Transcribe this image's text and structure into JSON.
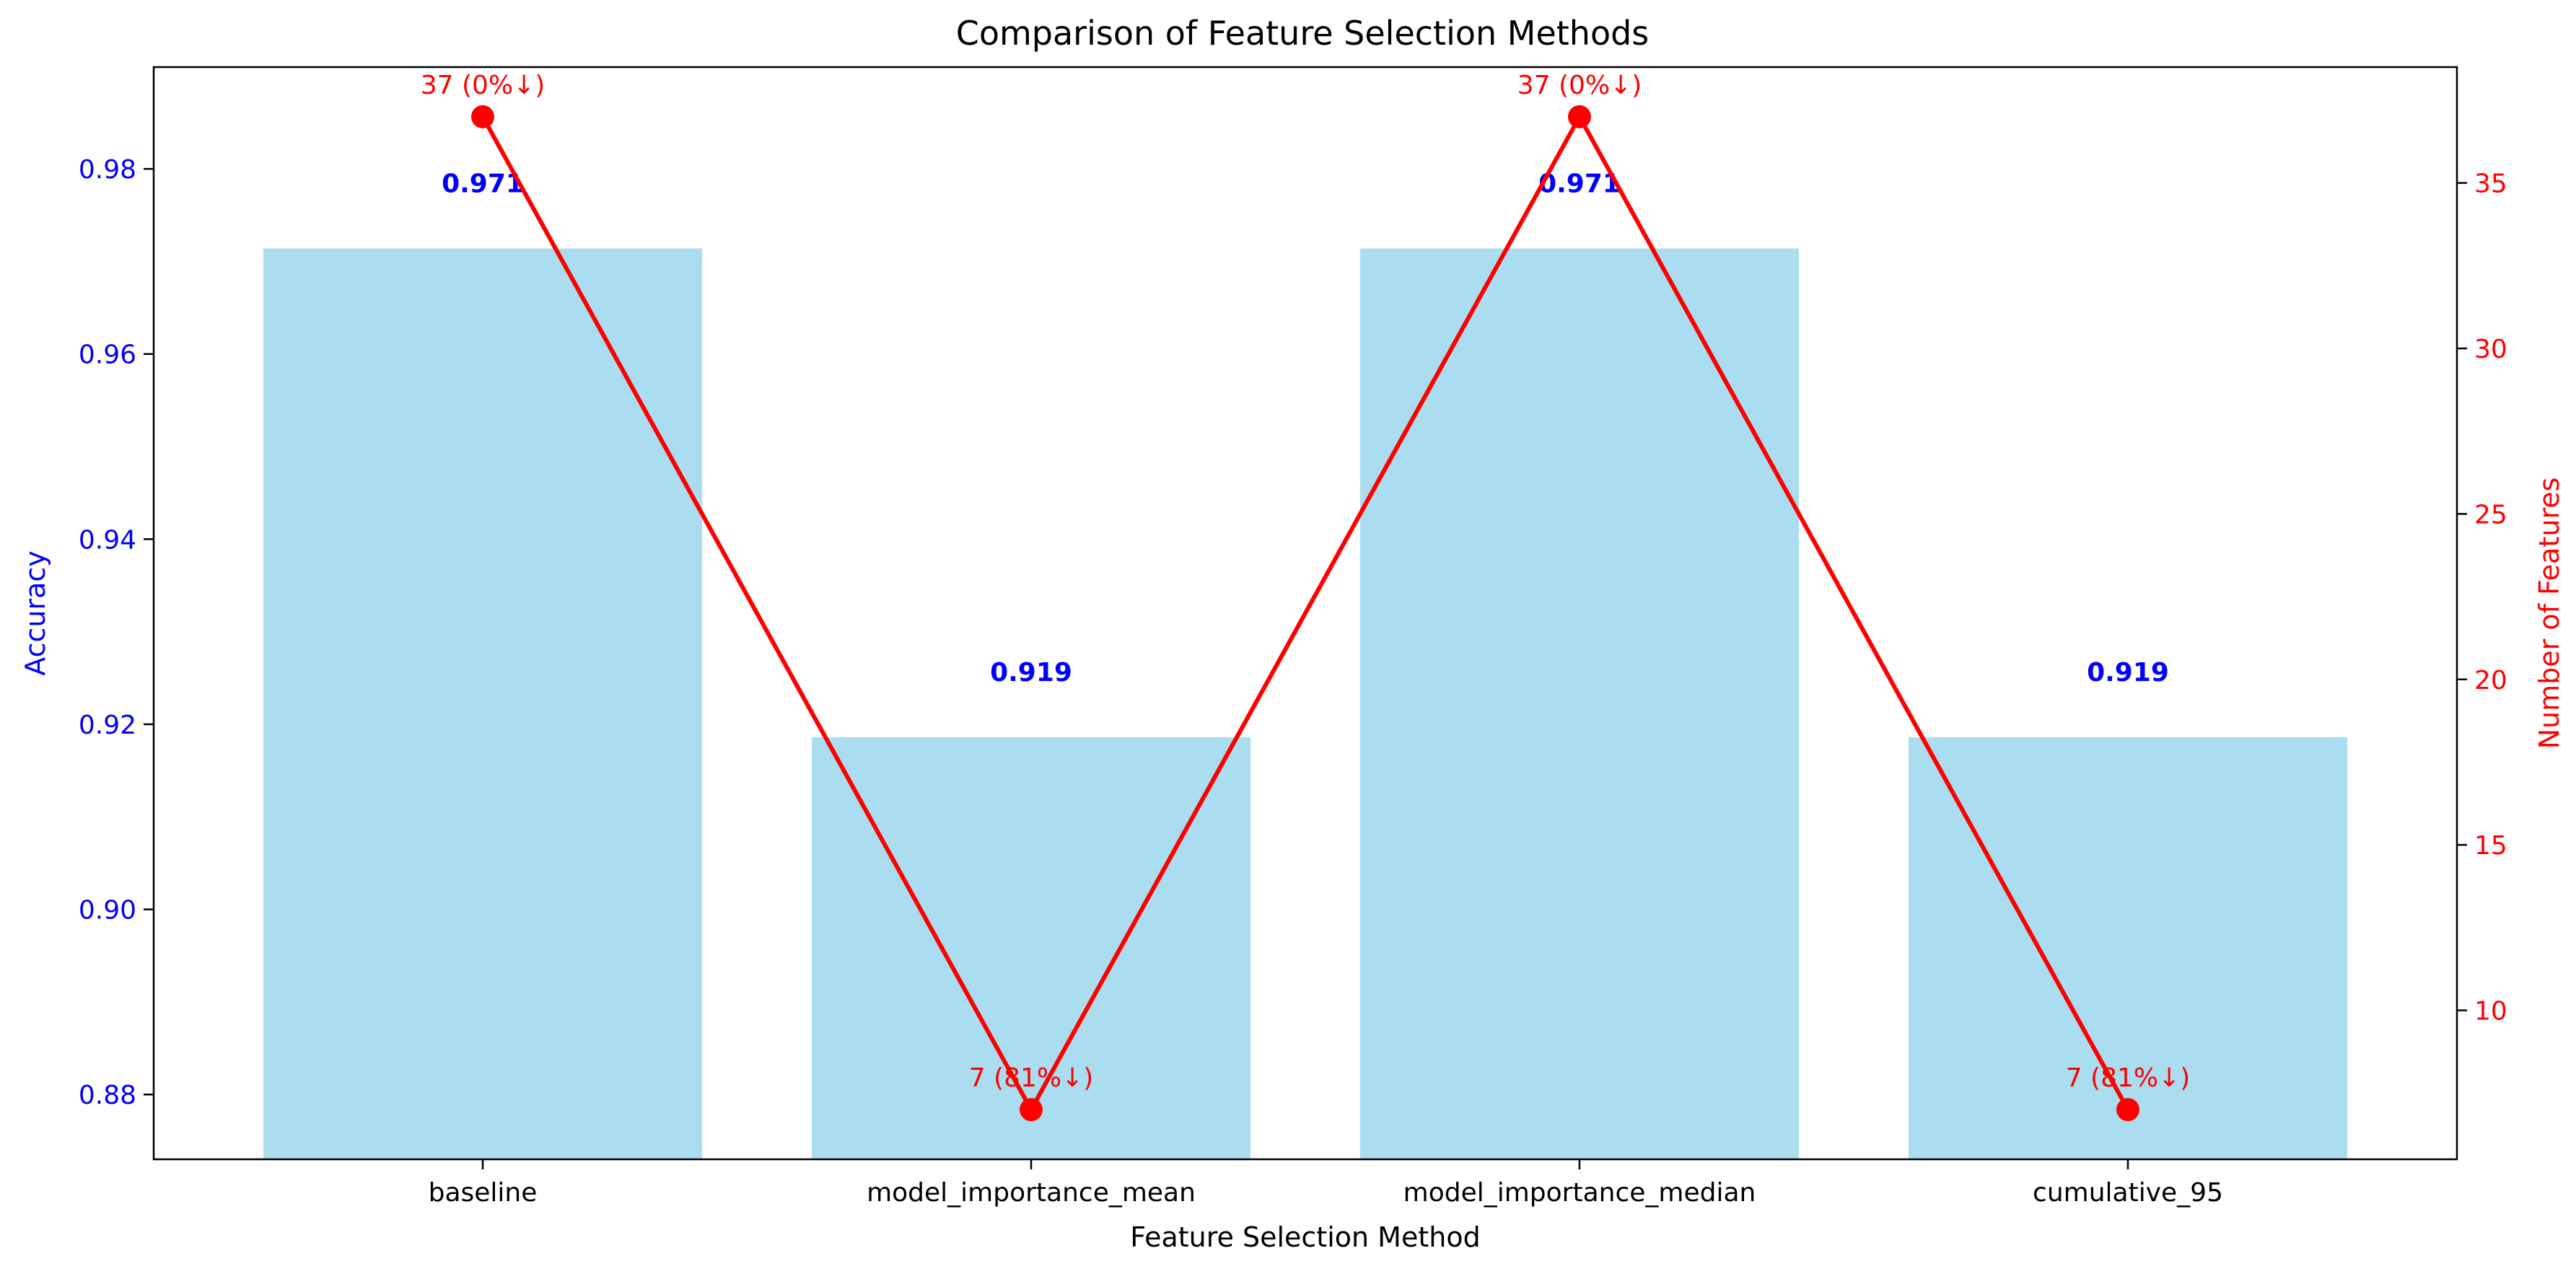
{
  "chart_data": {
    "type": "bar",
    "title": "Comparison of Feature Selection Methods",
    "xlabel": "Feature Selection Method",
    "ylabel": "Accuracy",
    "y2label": "Number of Features",
    "categories": [
      "baseline",
      "model_importance_mean",
      "model_importance_median",
      "cumulative_95"
    ],
    "ylim": [
      0.873,
      0.991
    ],
    "y2lim": [
      5.5,
      38.5
    ],
    "yticks": [
      "0.88",
      "0.90",
      "0.92",
      "0.94",
      "0.96",
      "0.98"
    ],
    "y2ticks": [
      "10",
      "15",
      "20",
      "25",
      "30",
      "35"
    ],
    "series": [
      {
        "type": "bar",
        "axis": "left",
        "values": [
          0.9714,
          0.9186,
          0.9714,
          0.9186
        ],
        "labels": [
          "0.971",
          "0.919",
          "0.971",
          "0.919"
        ],
        "color": "#87CEEB"
      },
      {
        "type": "line",
        "axis": "right",
        "values": [
          37,
          7,
          37,
          7
        ],
        "labels": [
          "37 (0%↓)",
          "7 (81%↓)",
          "37 (0%↓)",
          "7 (81%↓)"
        ],
        "color": "#FF0000"
      }
    ],
    "colors": {
      "left_axis": "#0000FF",
      "right_axis": "#FF0000",
      "bar_label": "#0000FF",
      "point_label": "#FF0000"
    },
    "grid": false
  }
}
